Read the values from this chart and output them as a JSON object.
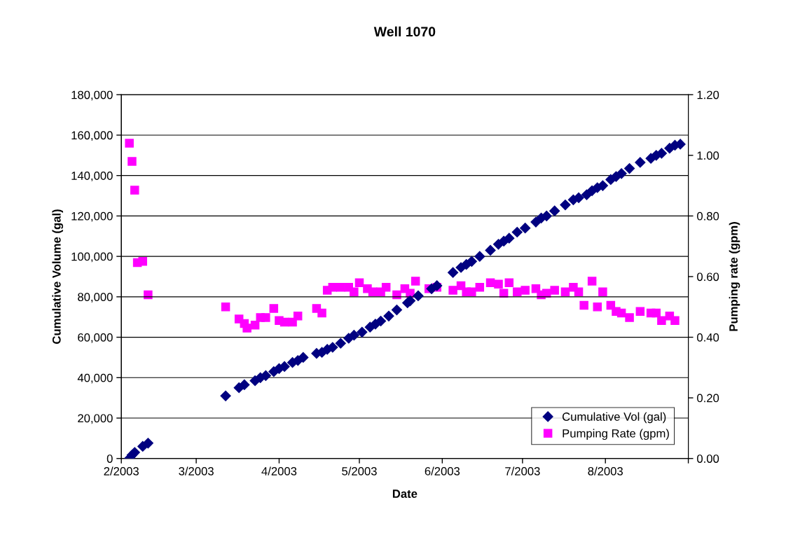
{
  "chart_data": {
    "type": "scatter",
    "title": "Well 1070",
    "xlabel": "Date",
    "ylabel": "Cumulative Volume (gal)",
    "y2label": "Pumping rate (gpm)",
    "xlim": [
      "2003-02-01",
      "2003-09-01"
    ],
    "xticks": [
      {
        "value": "2003-02-01",
        "label": "2/2003"
      },
      {
        "value": "2003-03-01",
        "label": "3/2003"
      },
      {
        "value": "2003-04-01",
        "label": "4/2003"
      },
      {
        "value": "2003-05-01",
        "label": "5/2003"
      },
      {
        "value": "2003-06-01",
        "label": "6/2003"
      },
      {
        "value": "2003-07-01",
        "label": "7/2003"
      },
      {
        "value": "2003-08-01",
        "label": "8/2003"
      },
      {
        "value": "2003-09-01",
        "label": null
      }
    ],
    "ylim": [
      0,
      180000
    ],
    "yticks": [
      {
        "value": 0,
        "label": "0"
      },
      {
        "value": 20000,
        "label": "20,000"
      },
      {
        "value": 40000,
        "label": "40,000"
      },
      {
        "value": 60000,
        "label": "60,000"
      },
      {
        "value": 80000,
        "label": "80,000"
      },
      {
        "value": 100000,
        "label": "100,000"
      },
      {
        "value": 120000,
        "label": "120,000"
      },
      {
        "value": 140000,
        "label": "140,000"
      },
      {
        "value": 160000,
        "label": "160,000"
      },
      {
        "value": 180000,
        "label": "180,000"
      }
    ],
    "y2lim": [
      0,
      1.2
    ],
    "y2ticks": [
      {
        "value": 0,
        "label": "0.00"
      },
      {
        "value": 0.2,
        "label": "0.20"
      },
      {
        "value": 0.4,
        "label": "0.40"
      },
      {
        "value": 0.6,
        "label": "0.60"
      },
      {
        "value": 0.8,
        "label": "0.80"
      },
      {
        "value": 1.0,
        "label": "1.00"
      },
      {
        "value": 1.2,
        "label": "1.20"
      }
    ],
    "grid": "y",
    "legend": "bottom right",
    "series": [
      {
        "name": "Cumulative Vol (gal)",
        "color": "#000080",
        "marker": "diamond",
        "x": [
          "2003-02-04",
          "2003-02-05",
          "2003-02-06",
          "2003-02-09",
          "2003-02-11",
          "2003-03-12",
          "2003-03-17",
          "2003-03-19",
          "2003-03-23",
          "2003-03-25",
          "2003-03-27",
          "2003-03-30",
          "2003-04-01",
          "2003-04-03",
          "2003-04-06",
          "2003-04-08",
          "2003-04-10",
          "2003-04-15",
          "2003-04-17",
          "2003-04-19",
          "2003-04-21",
          "2003-04-24",
          "2003-04-27",
          "2003-04-29",
          "2003-05-02",
          "2003-05-05",
          "2003-05-07",
          "2003-05-09",
          "2003-05-12",
          "2003-05-15",
          "2003-05-19",
          "2003-05-20",
          "2003-05-23",
          "2003-05-28",
          "2003-05-30",
          "2003-06-05",
          "2003-06-08",
          "2003-06-10",
          "2003-06-12",
          "2003-06-15",
          "2003-06-19",
          "2003-06-22",
          "2003-06-24",
          "2003-06-26",
          "2003-06-29",
          "2003-07-02",
          "2003-07-06",
          "2003-07-08",
          "2003-07-10",
          "2003-07-13",
          "2003-07-17",
          "2003-07-20",
          "2003-07-22",
          "2003-07-25",
          "2003-07-27",
          "2003-07-29",
          "2003-07-31",
          "2003-08-03",
          "2003-08-05",
          "2003-08-07",
          "2003-08-10",
          "2003-08-14",
          "2003-08-18",
          "2003-08-20",
          "2003-08-22",
          "2003-08-25",
          "2003-08-27",
          "2003-08-29"
        ],
        "values": [
          0,
          1700,
          3000,
          6000,
          7600,
          31000,
          35000,
          36500,
          38500,
          40000,
          41000,
          43000,
          44500,
          45500,
          47500,
          48500,
          50000,
          52000,
          52500,
          54000,
          55000,
          57000,
          59500,
          61000,
          62500,
          65000,
          66500,
          68000,
          70500,
          73500,
          77000,
          78000,
          80500,
          84000,
          85500,
          92000,
          94500,
          96000,
          97500,
          100000,
          103000,
          106000,
          107500,
          109000,
          112000,
          114000,
          117000,
          119000,
          120000,
          122500,
          125500,
          128000,
          129000,
          130500,
          132500,
          134000,
          135000,
          138000,
          139500,
          141000,
          143500,
          146500,
          148500,
          150000,
          151000,
          153500,
          155000,
          155500
        ]
      },
      {
        "name": "Pumping Rate (gpm)",
        "color": "#ff00ff",
        "marker": "square",
        "axis": "y2",
        "x": [
          "2003-02-04",
          "2003-02-05",
          "2003-02-06",
          "2003-02-07",
          "2003-02-09",
          "2003-02-11",
          "2003-03-12",
          "2003-03-17",
          "2003-03-19",
          "2003-03-20",
          "2003-03-23",
          "2003-03-25",
          "2003-03-27",
          "2003-03-30",
          "2003-04-01",
          "2003-04-03",
          "2003-04-06",
          "2003-04-08",
          "2003-04-15",
          "2003-04-17",
          "2003-04-19",
          "2003-04-21",
          "2003-04-24",
          "2003-04-27",
          "2003-04-29",
          "2003-05-01",
          "2003-05-04",
          "2003-05-06",
          "2003-05-09",
          "2003-05-11",
          "2003-05-15",
          "2003-05-18",
          "2003-05-20",
          "2003-05-22",
          "2003-05-27",
          "2003-05-30",
          "2003-06-05",
          "2003-06-08",
          "2003-06-10",
          "2003-06-12",
          "2003-06-15",
          "2003-06-19",
          "2003-06-22",
          "2003-06-24",
          "2003-06-26",
          "2003-06-29",
          "2003-07-02",
          "2003-07-06",
          "2003-07-08",
          "2003-07-10",
          "2003-07-13",
          "2003-07-17",
          "2003-07-20",
          "2003-07-22",
          "2003-07-24",
          "2003-07-27",
          "2003-07-29",
          "2003-07-31",
          "2003-08-03",
          "2003-08-05",
          "2003-08-07",
          "2003-08-10",
          "2003-08-14",
          "2003-08-18",
          "2003-08-20",
          "2003-08-22",
          "2003-08-25",
          "2003-08-27"
        ],
        "values": [
          1.04,
          0.98,
          0.885,
          0.646,
          0.65,
          0.54,
          0.5,
          0.46,
          0.445,
          0.43,
          0.44,
          0.465,
          0.465,
          0.495,
          0.455,
          0.45,
          0.45,
          0.47,
          0.495,
          0.48,
          0.555,
          0.565,
          0.565,
          0.565,
          0.55,
          0.58,
          0.56,
          0.55,
          0.55,
          0.565,
          0.54,
          0.56,
          0.545,
          0.585,
          0.56,
          0.565,
          0.555,
          0.57,
          0.55,
          0.55,
          0.565,
          0.58,
          0.575,
          0.545,
          0.58,
          0.55,
          0.555,
          0.56,
          0.54,
          0.545,
          0.555,
          0.55,
          0.565,
          0.55,
          0.505,
          0.585,
          0.5,
          0.55,
          0.505,
          0.485,
          0.48,
          0.465,
          0.485,
          0.48,
          0.48,
          0.455,
          0.47,
          0.455
        ]
      }
    ]
  }
}
